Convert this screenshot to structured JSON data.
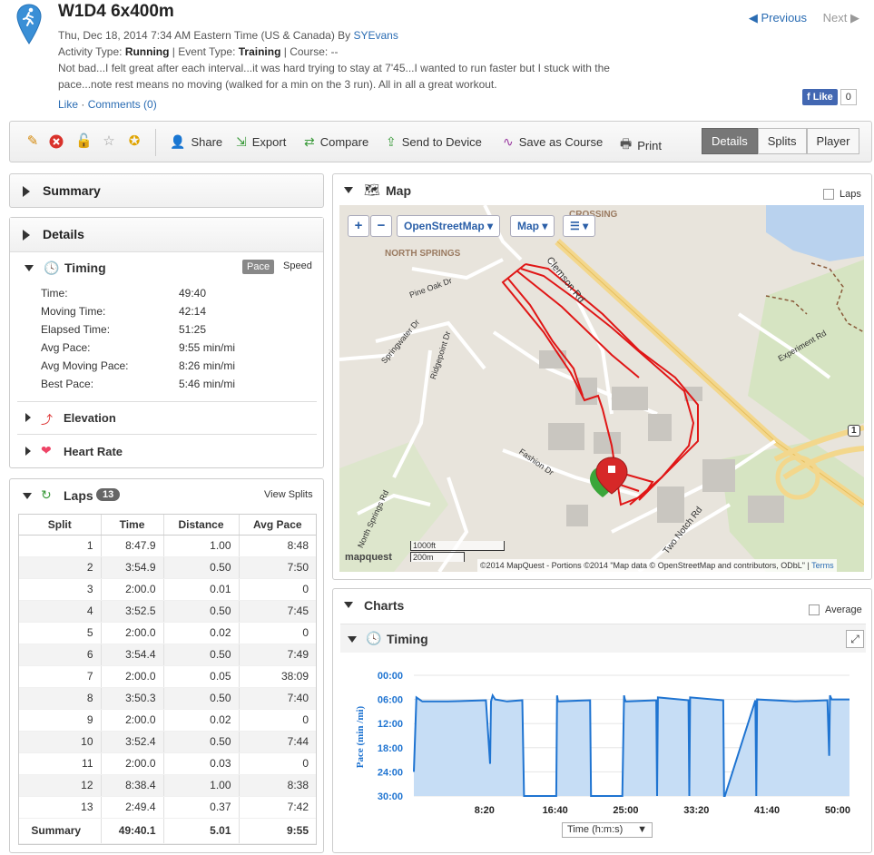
{
  "header": {
    "title": "W1D4 6x400m",
    "date_line_prefix": "Thu, Dec 18, 2014 7:34 AM Eastern Time (US & Canada) By ",
    "author": "SYEvans",
    "activity_type_label": "Activity Type: ",
    "activity_type": "Running",
    "event_type_label": " | Event Type: ",
    "event_type": "Training",
    "course_label": " | Course: --",
    "description": "Not bad...I felt great after each interval...it was hard trying to stay at 7'45...I wanted to run faster but I stuck with the pace...note rest means no moving (walked for a min on the 3 run). All in all a great workout.",
    "like": "Like",
    "comments": "Comments (0)",
    "prev": "Previous",
    "next": "Next",
    "fb_like": "Like",
    "fb_count": "0"
  },
  "toolbar": {
    "share": "Share",
    "export": "Export",
    "compare": "Compare",
    "send": "Send to Device",
    "save_course": "Save as Course",
    "print": "Print",
    "tabs": [
      "Details",
      "Splits",
      "Player"
    ]
  },
  "summary": {
    "title": "Summary"
  },
  "details": {
    "title": "Details",
    "timing_title": "Timing",
    "pace_toggle": "Pace",
    "speed_toggle": "Speed",
    "rows": [
      {
        "label": "Time:",
        "value": "49:40"
      },
      {
        "label": "Moving Time:",
        "value": "42:14"
      },
      {
        "label": "Elapsed Time:",
        "value": "51:25"
      },
      {
        "label": "Avg Pace:",
        "value": "9:55 min/mi"
      },
      {
        "label": "Avg Moving Pace:",
        "value": "8:26 min/mi"
      },
      {
        "label": "Best Pace:",
        "value": "5:46 min/mi"
      }
    ],
    "elevation": "Elevation",
    "heart_rate": "Heart Rate"
  },
  "laps": {
    "title": "Laps",
    "count": "13",
    "view_splits": "View Splits",
    "columns": [
      "Split",
      "Time",
      "Distance",
      "Avg Pace"
    ],
    "rows": [
      [
        "1",
        "8:47.9",
        "1.00",
        "8:48"
      ],
      [
        "2",
        "3:54.9",
        "0.50",
        "7:50"
      ],
      [
        "3",
        "2:00.0",
        "0.01",
        "0"
      ],
      [
        "4",
        "3:52.5",
        "0.50",
        "7:45"
      ],
      [
        "5",
        "2:00.0",
        "0.02",
        "0"
      ],
      [
        "6",
        "3:54.4",
        "0.50",
        "7:49"
      ],
      [
        "7",
        "2:00.0",
        "0.05",
        "38:09"
      ],
      [
        "8",
        "3:50.3",
        "0.50",
        "7:40"
      ],
      [
        "9",
        "2:00.0",
        "0.02",
        "0"
      ],
      [
        "10",
        "3:52.4",
        "0.50",
        "7:44"
      ],
      [
        "11",
        "2:00.0",
        "0.03",
        "0"
      ],
      [
        "12",
        "8:38.4",
        "1.00",
        "8:38"
      ],
      [
        "13",
        "2:49.4",
        "0.37",
        "7:42"
      ]
    ],
    "summary": [
      "Summary",
      "49:40.1",
      "5.01",
      "9:55"
    ]
  },
  "map": {
    "title": "Map",
    "laps_checkbox": "Laps",
    "layer_btn": "OpenStreetMap",
    "type_btn": "Map",
    "scale_ft": "1000ft",
    "scale_m": "200m",
    "brand": "mapquest",
    "attribution": "©2014 MapQuest  -  Portions ©2014 \"Map data © OpenStreetMap and contributors, ODbL\"",
    "terms": "Terms",
    "labels": {
      "north_springs": "NORTH SPRINGS",
      "crossing": "CROSSING",
      "clemson": "Clemson Rd",
      "pine_oak": "Pine Oak Dr",
      "springwater": "Springwater Dr",
      "ridgepoint": "Ridgepoint Dr",
      "fashion": "Fashion Dr",
      "north_springs_rd": "North Springs Rd",
      "experiment": "Experiment Rd",
      "two_notch": "Two Notch Rd",
      "route1": "1"
    }
  },
  "charts": {
    "title": "Charts",
    "average": "Average",
    "timing": "Timing",
    "x_select": "Time (h:m:s)"
  },
  "chart_data": {
    "type": "area",
    "ylabel": "Pace (min /mi)",
    "yticks": [
      "00:00",
      "06:00",
      "12:00",
      "18:00",
      "24:00",
      "30:00"
    ],
    "ylim_minutes": [
      0,
      30
    ],
    "y_inverted": true,
    "xticks": [
      "8:20",
      "16:40",
      "25:00",
      "33:20",
      "41:40",
      "50:00"
    ],
    "xlim_minutes": [
      0,
      51.4
    ],
    "series": [
      {
        "x_minutes": [
          0,
          0.3,
          1,
          4,
          8.5,
          9.0,
          9.1,
          9.3,
          9.6,
          11,
          12.8,
          13.0,
          13.1,
          13.2,
          16.8,
          16.9,
          17.0,
          20.8,
          20.9,
          21.0,
          24.6,
          24.8,
          24.9,
          25.0,
          28.6,
          28.7,
          28.8,
          32.4,
          32.5,
          32.6,
          36.5,
          36.6,
          36.7,
          40.3,
          40.4,
          40.5,
          45,
          48.8,
          49,
          49.1,
          49.3,
          51.4
        ],
        "y_minutes": [
          24,
          5.5,
          6.5,
          6.5,
          6.2,
          22,
          6.5,
          5,
          6,
          6.5,
          6.2,
          30,
          30,
          30,
          30,
          5,
          6.5,
          6.2,
          30,
          30,
          30,
          5,
          6,
          6.5,
          6.2,
          30,
          5.5,
          6.2,
          30,
          5.5,
          6.2,
          30,
          30,
          6.2,
          30,
          6,
          6.5,
          6.2,
          20,
          5,
          6,
          6
        ]
      }
    ]
  }
}
